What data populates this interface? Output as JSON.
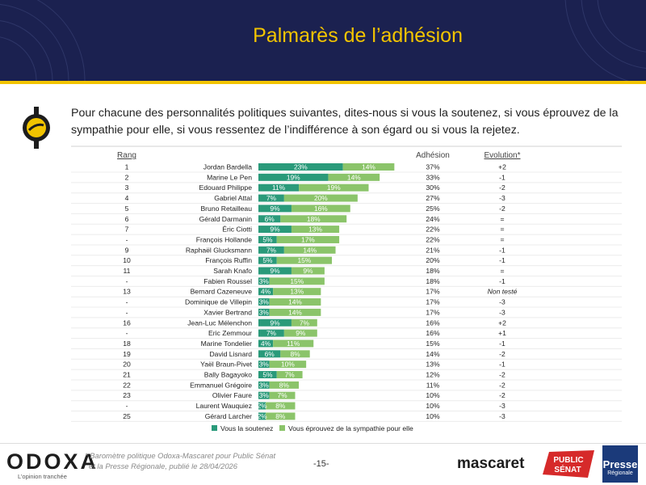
{
  "page": {
    "title": "Palmarès de l’adhésion",
    "question": "Pour chacune des personnalités politiques suivantes, dites-nous si vous la soutenez, si vous éprouvez de la sympathie pour elle, si vous ressentez de l’indifférence à son égard ou si vous la rejetez.",
    "footer_note_line1": "* Baromètre politique Odoxa-Mascaret pour Public Sénat",
    "footer_note_line2": "et la Presse Régionale, publié le 28/04/2026",
    "page_number": "-15-",
    "brand": "ODOXA",
    "brand_tagline": "L’opinion tranchée",
    "partner1": "mascaret",
    "partner2_line1": "PUBLIC",
    "partner2_line2": "SÉNAT",
    "partner3_line1": "Presse",
    "partner3_line2": "Régionale"
  },
  "colors": {
    "header_bg": "#1b2150",
    "accent": "#f2c400",
    "support": "#2a9a7a",
    "sympathy": "#8bc46a",
    "positive": "#2e9a4a",
    "negative": "#d9312b",
    "neutral": "#999999"
  },
  "chart_data": {
    "type": "bar",
    "stacked": true,
    "orientation": "horizontal",
    "column_headers": {
      "rank": "Rang",
      "adhesion": "Adhésion",
      "evolution": "Evolution*"
    },
    "series": [
      {
        "name": "Vous la soutenez",
        "color": "#2a9a7a"
      },
      {
        "name": "Vous éprouvez de la sympathie pour elle",
        "color": "#8bc46a"
      }
    ],
    "rows": [
      {
        "rank": "1",
        "name": "Jordan Bardella",
        "support": 23,
        "sympathy": 14,
        "adhesion": "37%",
        "evolution": "+2"
      },
      {
        "rank": "2",
        "name": "Marine Le Pen",
        "support": 19,
        "sympathy": 14,
        "adhesion": "33%",
        "evolution": "-1"
      },
      {
        "rank": "3",
        "name": "Edouard Philippe",
        "support": 11,
        "sympathy": 19,
        "adhesion": "30%",
        "evolution": "-2"
      },
      {
        "rank": "4",
        "name": "Gabriel Attal",
        "support": 7,
        "sympathy": 20,
        "adhesion": "27%",
        "evolution": "-3"
      },
      {
        "rank": "5",
        "name": "Bruno Retailleau",
        "support": 9,
        "sympathy": 16,
        "adhesion": "25%",
        "evolution": "-2"
      },
      {
        "rank": "6",
        "name": "Gérald Darmanin",
        "support": 6,
        "sympathy": 18,
        "adhesion": "24%",
        "evolution": "="
      },
      {
        "rank": "7",
        "name": "Éric Ciotti",
        "support": 9,
        "sympathy": 13,
        "adhesion": "22%",
        "evolution": "="
      },
      {
        "rank": "-",
        "name": "François Hollande",
        "support": 5,
        "sympathy": 17,
        "adhesion": "22%",
        "evolution": "="
      },
      {
        "rank": "9",
        "name": "Raphaël Glucksmann",
        "support": 7,
        "sympathy": 14,
        "adhesion": "21%",
        "evolution": "-1"
      },
      {
        "rank": "10",
        "name": "François Ruffin",
        "support": 5,
        "sympathy": 15,
        "adhesion": "20%",
        "evolution": "-1"
      },
      {
        "rank": "11",
        "name": "Sarah Knafo",
        "support": 9,
        "sympathy": 9,
        "adhesion": "18%",
        "evolution": "="
      },
      {
        "rank": "-",
        "name": "Fabien Roussel",
        "support": 3,
        "sympathy": 15,
        "adhesion": "18%",
        "evolution": "-1"
      },
      {
        "rank": "13",
        "name": "Bernard Cazeneuve",
        "support": 4,
        "sympathy": 13,
        "adhesion": "17%",
        "evolution": "Non testé"
      },
      {
        "rank": "-",
        "name": "Dominique de Villepin",
        "support": 3,
        "sympathy": 14,
        "adhesion": "17%",
        "evolution": "-3"
      },
      {
        "rank": "-",
        "name": "Xavier Bertrand",
        "support": 3,
        "sympathy": 14,
        "adhesion": "17%",
        "evolution": "-3"
      },
      {
        "rank": "16",
        "name": "Jean-Luc Mélenchon",
        "support": 9,
        "sympathy": 7,
        "adhesion": "16%",
        "evolution": "+2"
      },
      {
        "rank": "-",
        "name": "Eric Zemmour",
        "support": 7,
        "sympathy": 9,
        "adhesion": "16%",
        "evolution": "+1"
      },
      {
        "rank": "18",
        "name": "Marine Tondelier",
        "support": 4,
        "sympathy": 11,
        "adhesion": "15%",
        "evolution": "-1"
      },
      {
        "rank": "19",
        "name": "David Lisnard",
        "support": 6,
        "sympathy": 8,
        "adhesion": "14%",
        "evolution": "-2"
      },
      {
        "rank": "20",
        "name": "Yaël Braun-Pivet",
        "support": 3,
        "sympathy": 10,
        "adhesion": "13%",
        "evolution": "-1"
      },
      {
        "rank": "21",
        "name": "Bally Bagayoko",
        "support": 5,
        "sympathy": 7,
        "adhesion": "12%",
        "evolution": "-2"
      },
      {
        "rank": "22",
        "name": "Emmanuel Grégoire",
        "support": 3,
        "sympathy": 8,
        "adhesion": "11%",
        "evolution": "-2"
      },
      {
        "rank": "23",
        "name": "Olivier Faure",
        "support": 3,
        "sympathy": 7,
        "adhesion": "10%",
        "evolution": "-2"
      },
      {
        "rank": "-",
        "name": "Laurent Wauquiez",
        "support": 2,
        "sympathy": 8,
        "adhesion": "10%",
        "evolution": "-3"
      },
      {
        "rank": "25",
        "name": "Gérard Larcher",
        "support": 2,
        "sympathy": 8,
        "adhesion": "10%",
        "evolution": "-3"
      }
    ]
  }
}
